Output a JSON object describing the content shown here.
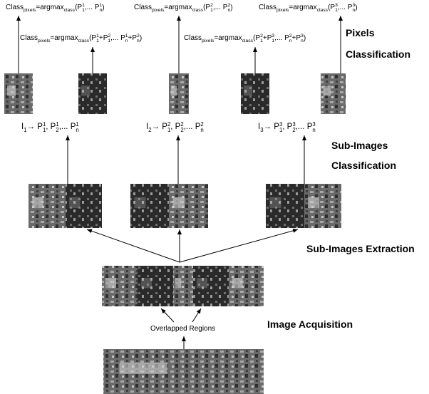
{
  "formulas": [
    [
      {
        "text": "Class",
        "sub": "pixels"
      },
      {
        "text": "=argmax",
        "sub": "class"
      },
      {
        "text": "(P",
        "sup": "1",
        "sub": "1"
      },
      {
        "text": ",... P",
        "sup": "1",
        "sub": "n"
      },
      {
        "text": ")"
      }
    ],
    [
      {
        "text": "Class",
        "sub": "pixels"
      },
      {
        "text": "=argmax",
        "sub": "class"
      },
      {
        "text": "(P",
        "sup": "2",
        "sub": "1"
      },
      {
        "text": ",... P",
        "sup": "2",
        "sub": "n"
      },
      {
        "text": ")"
      }
    ],
    [
      {
        "text": "Class",
        "sub": "pixels"
      },
      {
        "text": "=argmax",
        "sub": "class"
      },
      {
        "text": "(P",
        "sup": "3",
        "sub": "1"
      },
      {
        "text": ",... P",
        "sup": "3",
        "sub": "n"
      },
      {
        "text": ")"
      }
    ],
    [
      {
        "text": "Class",
        "sub": "pixels"
      },
      {
        "text": "=argmax",
        "sub": "class"
      },
      {
        "text": "(P",
        "sup": "1",
        "sub": "1"
      },
      {
        "text": "+P",
        "sup": "2",
        "sub": "1"
      },
      {
        "text": ",... P",
        "sup": "1",
        "sub": "n"
      },
      {
        "text": "+P",
        "sup": "2",
        "sub": "n"
      },
      {
        "text": ")"
      }
    ],
    [
      {
        "text": "Class",
        "sub": "pixels"
      },
      {
        "text": "=argmax",
        "sub": "class"
      },
      {
        "text": "(P",
        "sup": "2",
        "sub": "1"
      },
      {
        "text": "+P",
        "sup": "3",
        "sub": "1"
      },
      {
        "text": ",... P",
        "sup": "2",
        "sub": "n"
      },
      {
        "text": "+P",
        "sup": "3",
        "sub": "n"
      },
      {
        "text": ")"
      }
    ]
  ],
  "mappings": [
    [
      {
        "text": "I",
        "sub": "1"
      },
      {
        "text": "→ P",
        "sup": "1",
        "sub": "1"
      },
      {
        "text": ", P",
        "sup": "1",
        "sub": "2"
      },
      {
        "text": ",... P",
        "sup": "1",
        "sub": "n"
      }
    ],
    [
      {
        "text": "I",
        "sub": "2"
      },
      {
        "text": "→ P",
        "sup": "2",
        "sub": "1"
      },
      {
        "text": ", P",
        "sup": "2",
        "sub": "2"
      },
      {
        "text": ",... P",
        "sup": "2",
        "sub": "n"
      }
    ],
    [
      {
        "text": "I",
        "sub": "3"
      },
      {
        "text": "→ P",
        "sup": "3",
        "sub": "1"
      },
      {
        "text": ", P",
        "sup": "3",
        "sub": "2"
      },
      {
        "text": ",... P",
        "sup": "3",
        "sub": "n"
      }
    ]
  ],
  "labels": {
    "pixels_classification": [
      "Pixels",
      "Classification"
    ],
    "sub_images_classification": [
      "Sub-Images",
      "Classification"
    ],
    "sub_images_extraction": "Sub-Images Extraction",
    "image_acquisition": "Image Acquisition",
    "overlapped_regions": "Overlapped Regions"
  }
}
